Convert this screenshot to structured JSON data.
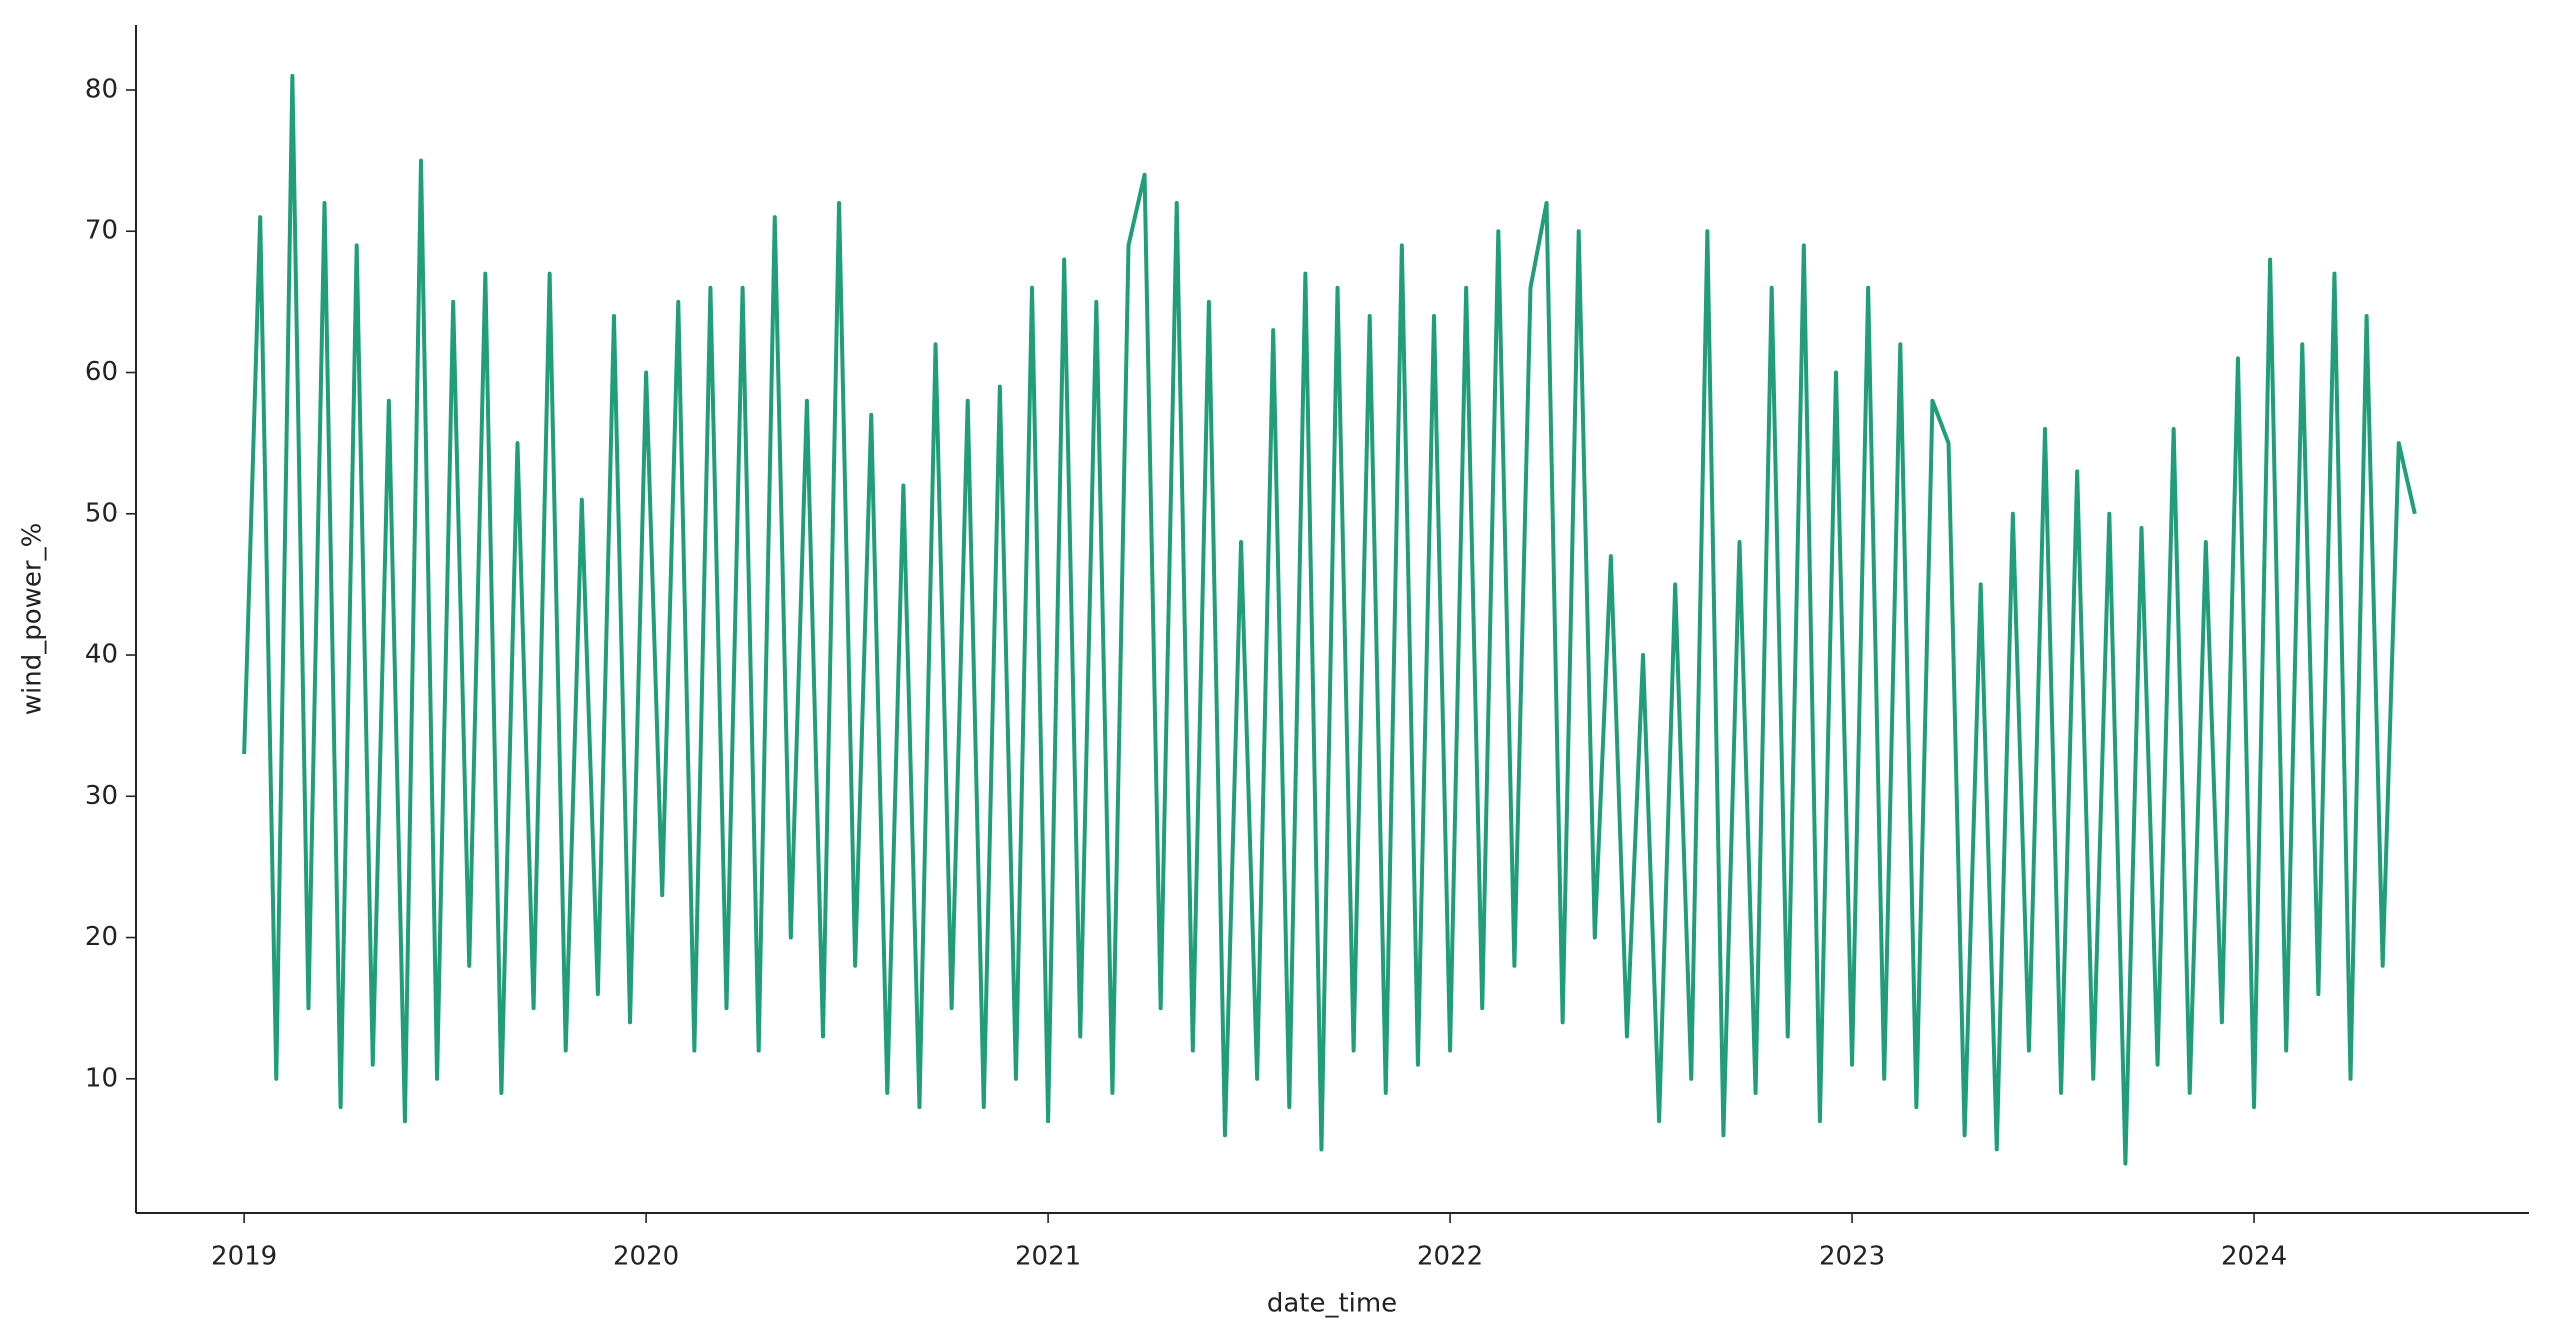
{
  "chart_data": {
    "type": "line",
    "xlabel": "date_time",
    "ylabel": "wind_power_%",
    "color": "#1f9e77",
    "x": [
      2019.0,
      2019.04,
      2019.08,
      2019.12,
      2019.16,
      2019.2,
      2019.24,
      2019.28,
      2019.32,
      2019.36,
      2019.4,
      2019.44,
      2019.48,
      2019.52,
      2019.56,
      2019.6,
      2019.64,
      2019.68,
      2019.72,
      2019.76,
      2019.8,
      2019.84,
      2019.88,
      2019.92,
      2019.96,
      2020.0,
      2020.04,
      2020.08,
      2020.12,
      2020.16,
      2020.2,
      2020.24,
      2020.28,
      2020.32,
      2020.36,
      2020.4,
      2020.44,
      2020.48,
      2020.52,
      2020.56,
      2020.6,
      2020.64,
      2020.68,
      2020.72,
      2020.76,
      2020.8,
      2020.84,
      2020.88,
      2020.92,
      2020.96,
      2021.0,
      2021.04,
      2021.08,
      2021.12,
      2021.16,
      2021.2,
      2021.24,
      2021.28,
      2021.32,
      2021.36,
      2021.4,
      2021.44,
      2021.48,
      2021.52,
      2021.56,
      2021.6,
      2021.64,
      2021.68,
      2021.72,
      2021.76,
      2021.8,
      2021.84,
      2021.88,
      2021.92,
      2021.96,
      2022.0,
      2022.04,
      2022.08,
      2022.12,
      2022.16,
      2022.2,
      2022.24,
      2022.28,
      2022.32,
      2022.36,
      2022.4,
      2022.44,
      2022.48,
      2022.52,
      2022.56,
      2022.6,
      2022.64,
      2022.68,
      2022.72,
      2022.76,
      2022.8,
      2022.84,
      2022.88,
      2022.92,
      2022.96,
      2023.0,
      2023.04,
      2023.08,
      2023.12,
      2023.16,
      2023.2,
      2023.24,
      2023.28,
      2023.32,
      2023.36,
      2023.4,
      2023.44,
      2023.48,
      2023.52,
      2023.56,
      2023.6,
      2023.64,
      2023.68,
      2023.72,
      2023.76,
      2023.8,
      2023.84,
      2023.88,
      2023.92,
      2023.96,
      2024.0,
      2024.04,
      2024.08,
      2024.12,
      2024.16,
      2024.2,
      2024.24,
      2024.28,
      2024.32,
      2024.36,
      2024.4
    ],
    "values": [
      33,
      71,
      10,
      81,
      15,
      72,
      8,
      69,
      11,
      58,
      7,
      75,
      10,
      65,
      18,
      67,
      9,
      55,
      15,
      67,
      12,
      51,
      16,
      64,
      14,
      60,
      23,
      65,
      12,
      66,
      15,
      66,
      12,
      71,
      20,
      58,
      13,
      72,
      18,
      57,
      9,
      52,
      8,
      62,
      15,
      58,
      8,
      59,
      10,
      66,
      7,
      68,
      13,
      65,
      9,
      69,
      74,
      15,
      72,
      12,
      65,
      6,
      48,
      10,
      63,
      8,
      67,
      5,
      66,
      12,
      64,
      9,
      69,
      11,
      64,
      12,
      66,
      15,
      70,
      18,
      66,
      72,
      14,
      70,
      20,
      47,
      13,
      40,
      7,
      45,
      10,
      70,
      6,
      48,
      9,
      66,
      13,
      69,
      7,
      60,
      11,
      66,
      10,
      62,
      8,
      58,
      55,
      6,
      45,
      5,
      50,
      12,
      56,
      9,
      53,
      10,
      50,
      4,
      49,
      11,
      56,
      9,
      48,
      14,
      61,
      8,
      68,
      12,
      62,
      16,
      67,
      10,
      64,
      18,
      55,
      50
    ],
    "xlim": [
      2018.731,
      2024.684
    ],
    "ylim": [
      0.5,
      84.6
    ],
    "xticks": [
      2019,
      2020,
      2021,
      2022,
      2023,
      2024
    ],
    "yticks": [
      10,
      20,
      30,
      40,
      50,
      60,
      70,
      80
    ]
  }
}
